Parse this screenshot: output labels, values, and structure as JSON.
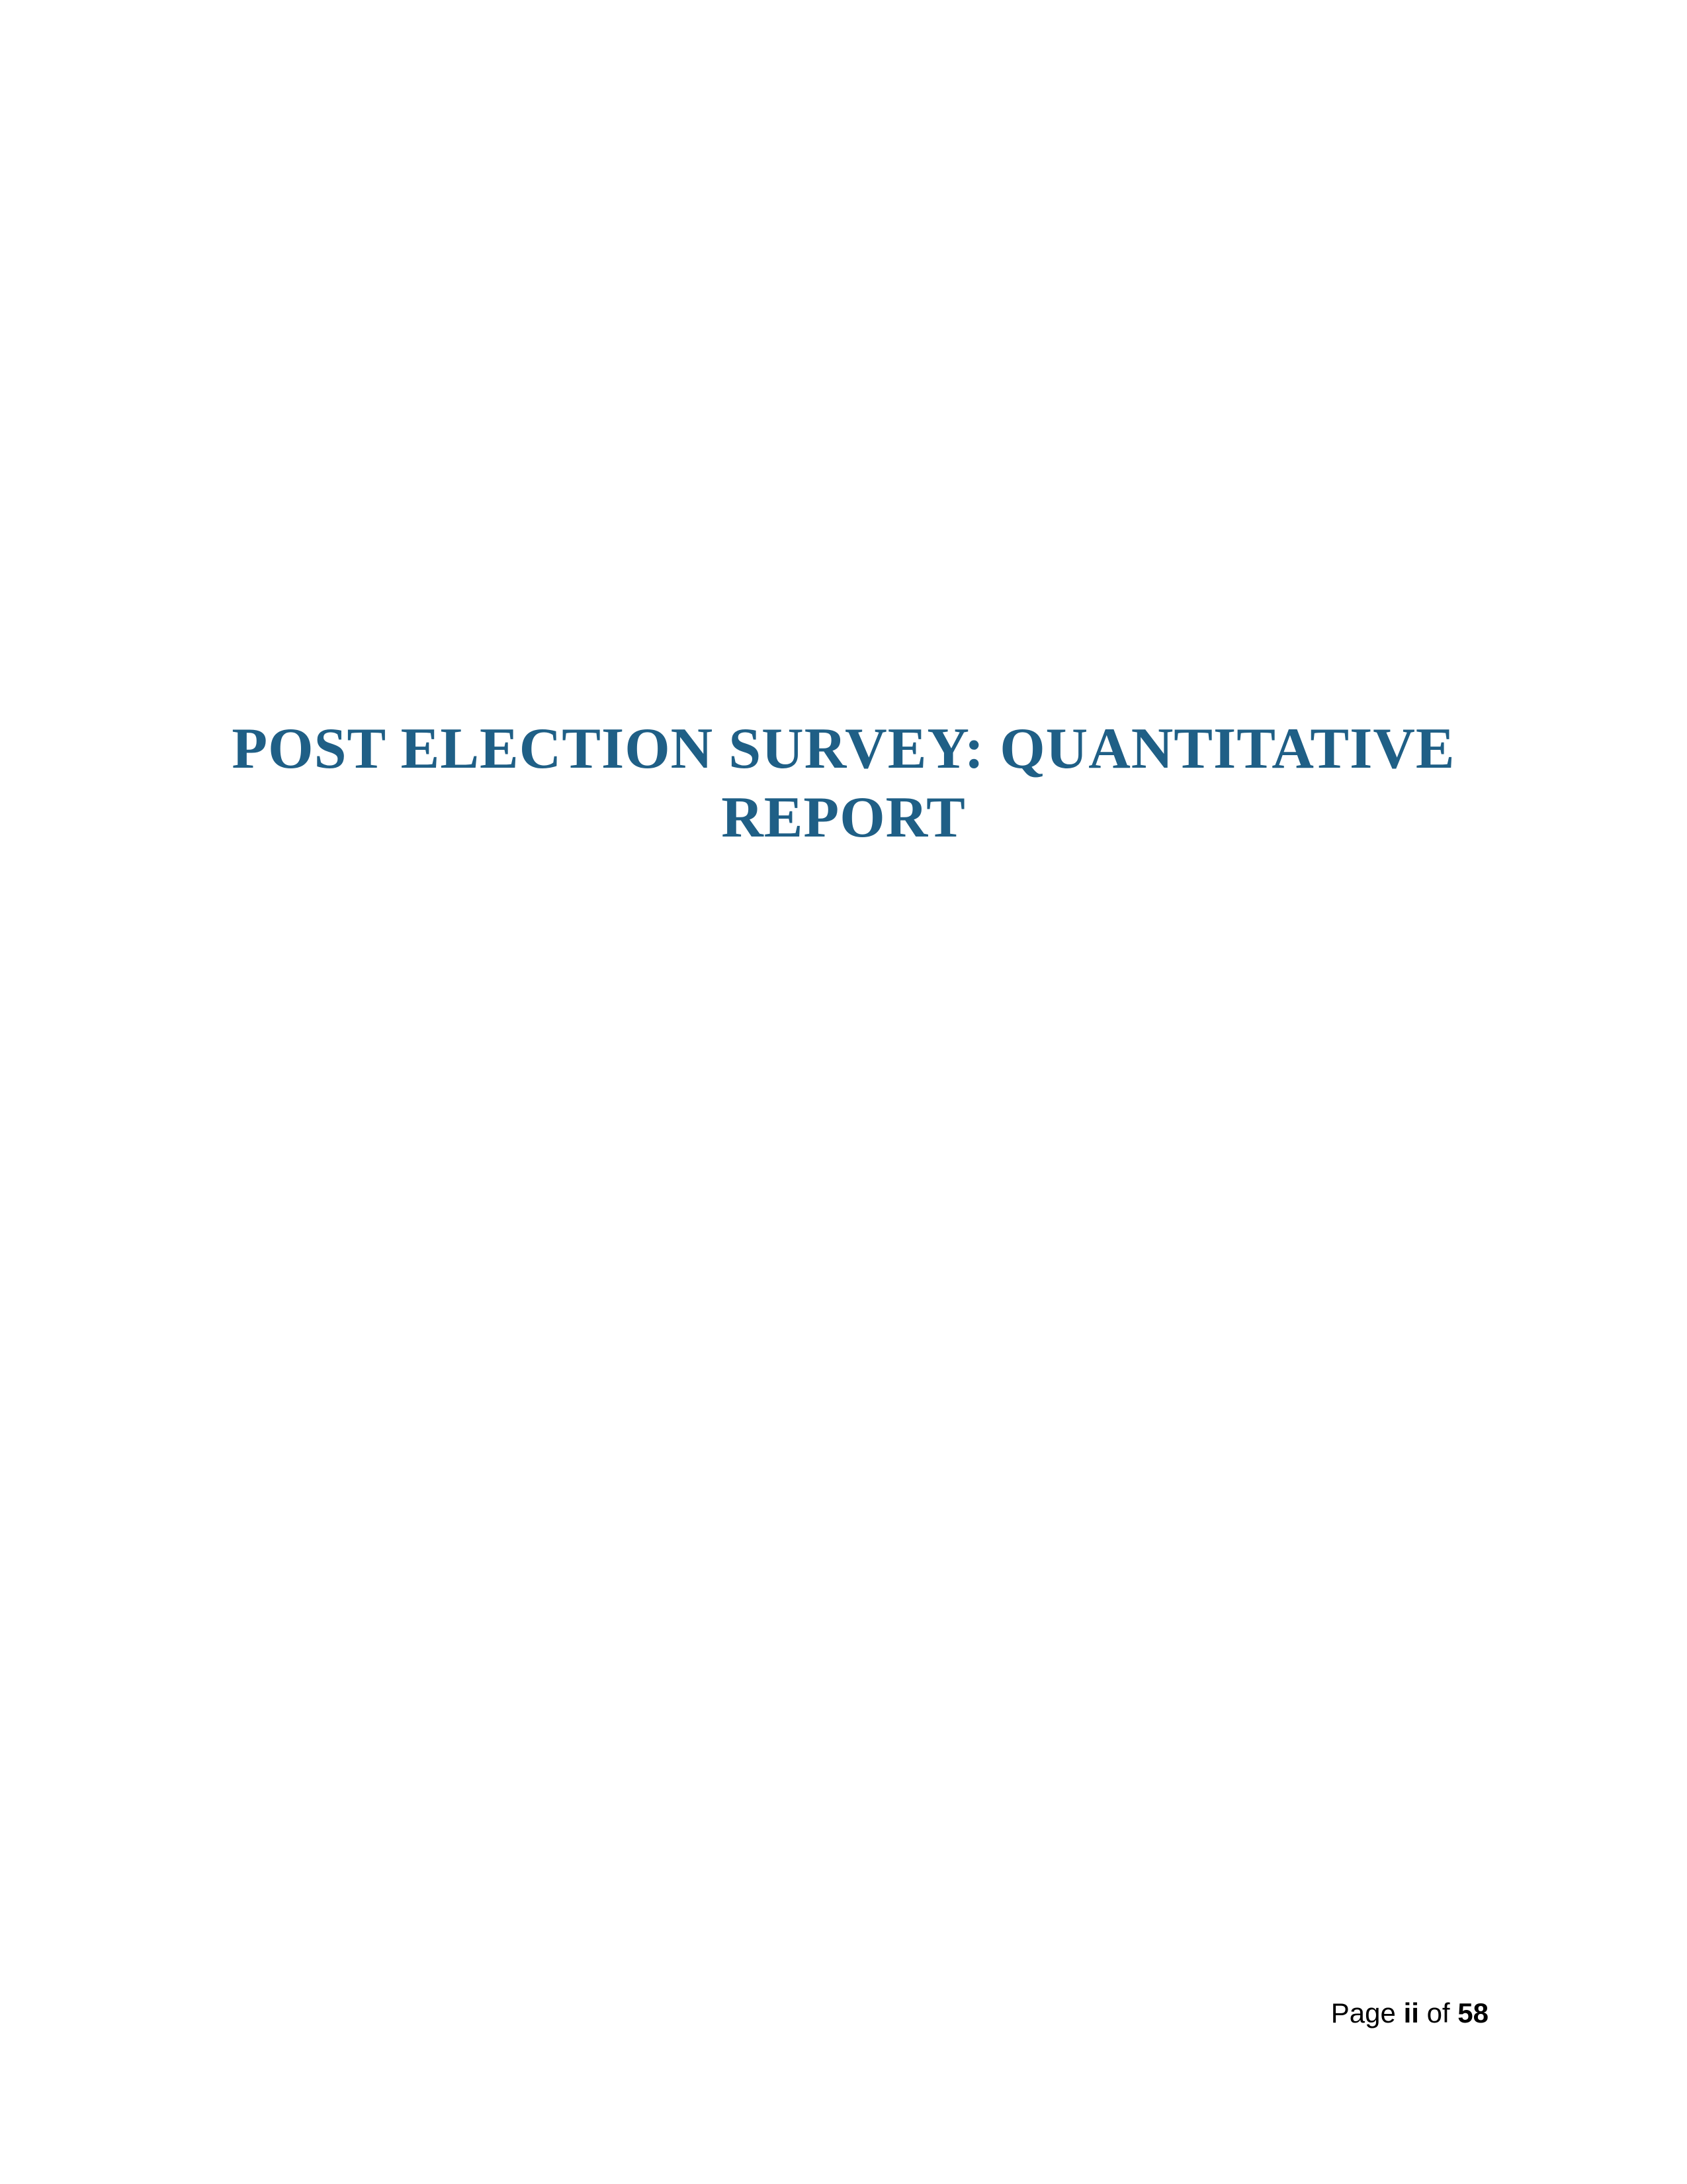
{
  "document": {
    "title_line_1": "POST ELECTION SURVEY: QUANTITATIVE",
    "title_line_2": "REPORT",
    "title_color": "#1f5f86"
  },
  "footer": {
    "page_prefix": "Page",
    "current_page": "ii",
    "of_label": "of",
    "total_pages": "58"
  }
}
